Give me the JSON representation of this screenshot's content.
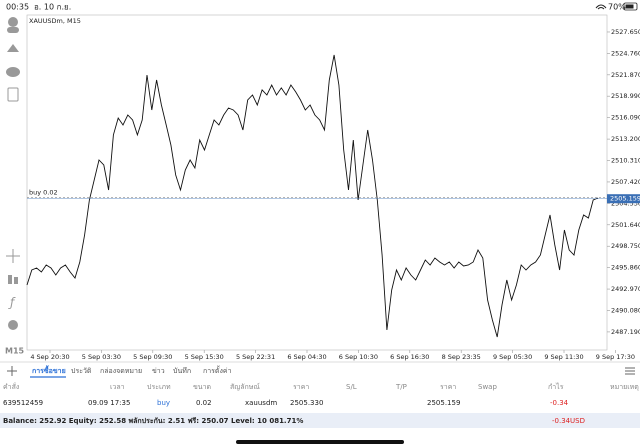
{
  "status": {
    "time": "00:35",
    "date": "อ. 10 ก.ย.",
    "battery": "70%"
  },
  "chart_data": {
    "type": "line",
    "title": "XAUUSDm, M15",
    "timeframe": "M15",
    "color": "#111111",
    "grid": false,
    "values": [
      2493.52,
      2495.54,
      2495.81,
      2495.27,
      2496.22,
      2495.81,
      2494.87,
      2495.81,
      2496.22,
      2495.27,
      2494.46,
      2496.62,
      2500.27,
      2504.99,
      2507.68,
      2510.38,
      2509.71,
      2506.34,
      2513.76,
      2516.05,
      2515.1,
      2516.45,
      2515.78,
      2513.76,
      2515.78,
      2521.85,
      2517.13,
      2521.17,
      2517.8,
      2515.1,
      2512.41,
      2508.36,
      2506.34,
      2509.03,
      2510.38,
      2509.3,
      2513.08,
      2511.73,
      2513.76,
      2515.78,
      2515.1,
      2516.45,
      2517.4,
      2517.13,
      2516.45,
      2514.43,
      2518.48,
      2519.15,
      2517.8,
      2519.83,
      2519.15,
      2520.5,
      2519.15,
      2520.1,
      2519.15,
      2520.5,
      2519.56,
      2518.48,
      2517.13,
      2517.8,
      2516.45,
      2515.78,
      2514.43,
      2521.17,
      2524.55,
      2520.5,
      2511.73,
      2506.34,
      2513.08,
      2504.99,
      2509.71,
      2514.43,
      2510.38,
      2504.99,
      2497.57,
      2487.45,
      2492.85,
      2495.54,
      2494.19,
      2495.81,
      2494.87,
      2494.19,
      2495.54,
      2496.89,
      2496.22,
      2497.16,
      2496.62,
      2496.22,
      2496.62,
      2495.81,
      2496.62,
      2496.08,
      2496.22,
      2496.62,
      2498.24,
      2497.16,
      2491.5,
      2488.8,
      2486.51,
      2490.82,
      2494.19,
      2491.5,
      2493.52,
      2496.22,
      2495.54,
      2496.22,
      2496.62,
      2497.57,
      2500.27,
      2502.96,
      2498.92,
      2495.54,
      2500.94,
      2498.24,
      2497.57,
      2500.94,
      2502.96,
      2502.56,
      2504.99,
      2505.26
    ],
    "ylim": [
      2484.75,
      2529.94
    ],
    "yticks": [
      {
        "value": 2527.65,
        "label": "2527.650"
      },
      {
        "value": 2524.76,
        "label": "2524.760"
      },
      {
        "value": 2521.87,
        "label": "2521.870"
      },
      {
        "value": 2518.99,
        "label": "2518.990"
      },
      {
        "value": 2516.09,
        "label": "2516.090"
      },
      {
        "value": 2513.2,
        "label": "2513.200"
      },
      {
        "value": 2510.31,
        "label": "2510.310"
      },
      {
        "value": 2507.42,
        "label": "2507.420"
      },
      {
        "value": 2504.53,
        "label": "2504.530"
      },
      {
        "value": 2501.64,
        "label": "2501.640"
      },
      {
        "value": 2498.75,
        "label": "2498.750"
      },
      {
        "value": 2495.86,
        "label": "2495.860"
      },
      {
        "value": 2492.97,
        "label": "2492.970"
      },
      {
        "value": 2490.08,
        "label": "2490.080"
      },
      {
        "value": 2487.19,
        "label": "2487.190"
      }
    ],
    "xticks": [
      "4 Sep 20:30",
      "5 Sep 03:30",
      "5 Sep 09:30",
      "5 Sep 15:30",
      "5 Sep 22:31",
      "6 Sep 04:30",
      "6 Sep 10:30",
      "6 Sep 16:30",
      "8 Sep 23:35",
      "9 Sep 05:30",
      "9 Sep 11:30",
      "9 Sep 17:30"
    ],
    "current_price": {
      "value": 2505.159,
      "label": "2505.159",
      "color": "#3a6fb5"
    },
    "buy_line": {
      "label": "buy 0.02",
      "value": 2505.33
    }
  },
  "tabs": [
    "การซื้อขาย",
    "ประวัติ",
    "กล่องจดหมาย",
    "ข่าว",
    "บันทึก",
    "การตั้งค่า"
  ],
  "table": {
    "header": [
      "คำสั่ง",
      "เวลา",
      "ประเภท",
      "ขนาด",
      "สัญลักษณ์",
      "ราคา",
      "S/L",
      "T/P",
      "ราคา",
      "Swap",
      "กำไร",
      "หมายเหตุ"
    ],
    "row": {
      "order": "639512459",
      "time": "09.09 17:35",
      "type": "buy",
      "volume": "0.02",
      "symbol": "xauusdm",
      "open_price": "2505.330",
      "price": "2505.159",
      "profit": "-0.34"
    }
  },
  "footer": {
    "balance": "Balance: 252.92 Equity: 252.58 พลักประกัน: 2.51 ฟรี: 250.07 Level: 10 081.71%",
    "profit": "-0.34",
    "currency": "USD"
  }
}
